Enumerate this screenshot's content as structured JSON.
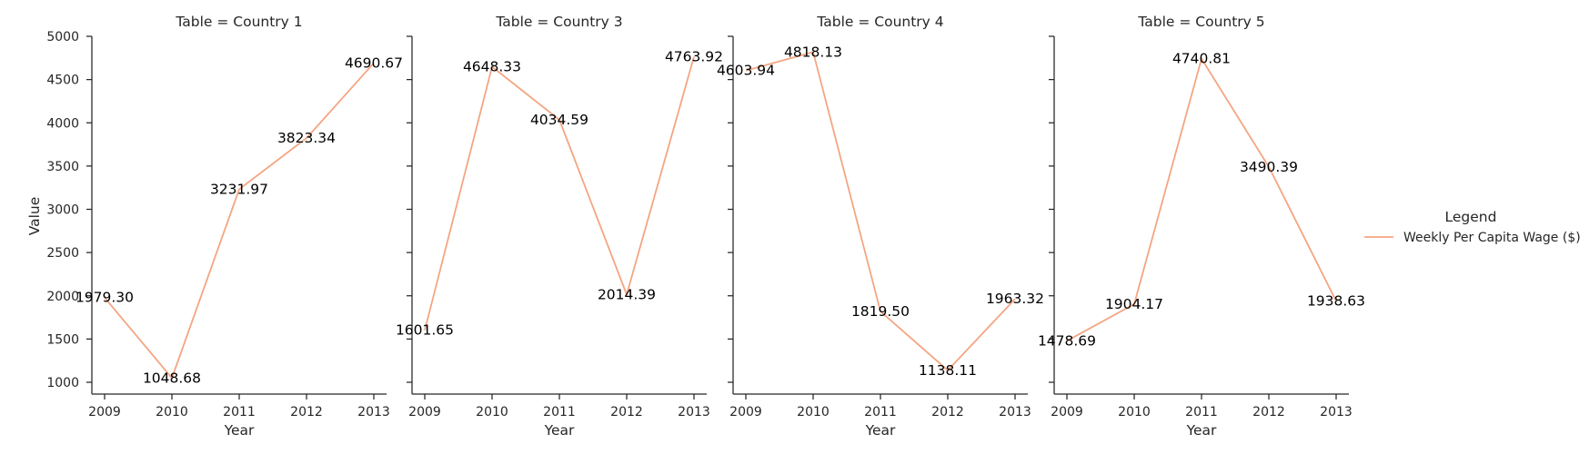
{
  "chart_data": {
    "type": "line",
    "x": [
      2009,
      2010,
      2011,
      2012,
      2013
    ],
    "xlabel": "Year",
    "ylabel": "Value",
    "ylim": [
      1000,
      5000
    ],
    "yticks": [
      1000,
      1500,
      2000,
      2500,
      3000,
      3500,
      4000,
      4500,
      5000
    ],
    "grid": false,
    "line_color": "#f4a582",
    "legend": {
      "title": "Legend",
      "position": "right",
      "entries": [
        "Weekly Per Capita Wage ($)"
      ]
    },
    "panels": [
      {
        "title": "Table = Country 1",
        "series": [
          {
            "name": "Weekly Per Capita Wage ($)",
            "values": [
              1979.3,
              1048.68,
              3231.97,
              3823.34,
              4690.67
            ],
            "labels": [
              "1979.30",
              "1048.68",
              "3231.97",
              "3823.34",
              "4690.67"
            ]
          }
        ]
      },
      {
        "title": "Table = Country 3",
        "series": [
          {
            "name": "Weekly Per Capita Wage ($)",
            "values": [
              1601.65,
              4648.33,
              4034.59,
              2014.39,
              4763.92
            ],
            "labels": [
              "1601.65",
              "4648.33",
              "4034.59",
              "2014.39",
              "4763.92"
            ]
          }
        ]
      },
      {
        "title": "Table = Country 4",
        "series": [
          {
            "name": "Weekly Per Capita Wage ($)",
            "values": [
              4603.94,
              4818.13,
              1819.5,
              1138.11,
              1963.32
            ],
            "labels": [
              "4603.94",
              "4818.13",
              "1819.50",
              "1138.11",
              "1963.32"
            ]
          }
        ]
      },
      {
        "title": "Table = Country 5",
        "series": [
          {
            "name": "Weekly Per Capita Wage ($)",
            "values": [
              1478.69,
              1904.17,
              4740.81,
              3490.39,
              1938.63
            ],
            "labels": [
              "1478.69",
              "1904.17",
              "4740.81",
              "3490.39",
              "1938.63"
            ]
          }
        ]
      }
    ]
  }
}
